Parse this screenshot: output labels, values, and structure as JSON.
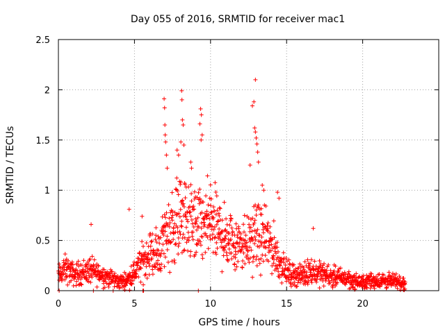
{
  "chart_data": {
    "type": "scatter",
    "title": "Day 055 of 2016, SRMTID for receiver mac1",
    "xlabel": "GPS time / hours",
    "ylabel": "SRMTID / TECUs",
    "xlim": [
      0,
      25
    ],
    "ylim": [
      0,
      2.5
    ],
    "xticks": [
      0,
      5,
      10,
      15,
      20
    ],
    "xtick_labels": [
      "0",
      "5",
      "10",
      "15",
      "20"
    ],
    "yticks": [
      0,
      0.5,
      1,
      1.5,
      2,
      2.5
    ],
    "ytick_labels": [
      "0",
      "0.5",
      "1",
      "1.5",
      "2",
      "2.5"
    ],
    "grid": true,
    "marker": "+",
    "color": "#ff0000",
    "series": [
      {
        "name": "SRMTID",
        "profile": {
          "x": [
            0.0,
            0.5,
            1.0,
            1.5,
            2.0,
            2.5,
            3.0,
            3.5,
            4.0,
            4.5,
            5.0,
            5.5,
            6.0,
            6.5,
            7.0,
            7.5,
            8.0,
            8.5,
            9.0,
            9.5,
            10.0,
            10.5,
            11.0,
            11.5,
            12.0,
            12.5,
            13.0,
            13.5,
            14.0,
            14.5,
            15.0,
            15.5,
            16.0,
            16.5,
            17.0,
            17.5,
            18.0,
            18.5,
            19.0,
            19.5,
            20.0,
            20.5,
            21.0,
            21.5,
            22.0,
            22.5,
            22.8
          ],
          "y": [
            0.15,
            0.22,
            0.16,
            0.18,
            0.2,
            0.18,
            0.15,
            0.12,
            0.09,
            0.1,
            0.18,
            0.28,
            0.38,
            0.35,
            0.55,
            0.65,
            0.75,
            0.7,
            0.65,
            0.62,
            0.68,
            0.6,
            0.52,
            0.5,
            0.5,
            0.48,
            0.55,
            0.5,
            0.45,
            0.3,
            0.18,
            0.16,
            0.15,
            0.2,
            0.18,
            0.16,
            0.14,
            0.13,
            0.12,
            0.09,
            0.08,
            0.1,
            0.1,
            0.1,
            0.09,
            0.08,
            0.07
          ]
        },
        "outliers": [
          [
            6.95,
            1.91
          ],
          [
            6.98,
            1.82
          ],
          [
            7.0,
            1.65
          ],
          [
            7.02,
            1.55
          ],
          [
            7.05,
            1.48
          ],
          [
            7.1,
            1.35
          ],
          [
            7.15,
            1.22
          ],
          [
            8.1,
            1.99
          ],
          [
            8.12,
            1.9
          ],
          [
            8.15,
            1.7
          ],
          [
            8.2,
            1.65
          ],
          [
            8.05,
            1.48
          ],
          [
            8.25,
            1.45
          ],
          [
            7.8,
            1.4
          ],
          [
            7.9,
            1.35
          ],
          [
            9.35,
            1.81
          ],
          [
            9.4,
            1.75
          ],
          [
            9.3,
            1.66
          ],
          [
            9.45,
            1.55
          ],
          [
            9.38,
            1.5
          ],
          [
            8.7,
            1.28
          ],
          [
            8.75,
            1.22
          ],
          [
            12.95,
            2.1
          ],
          [
            12.75,
            1.84
          ],
          [
            12.85,
            1.88
          ],
          [
            12.9,
            1.62
          ],
          [
            12.95,
            1.58
          ],
          [
            13.0,
            1.52
          ],
          [
            13.05,
            1.46
          ],
          [
            13.1,
            1.38
          ],
          [
            12.6,
            1.25
          ],
          [
            13.15,
            1.28
          ],
          [
            13.4,
            1.05
          ],
          [
            13.5,
            1.0
          ],
          [
            14.4,
            0.98
          ],
          [
            14.5,
            0.92
          ],
          [
            4.65,
            0.81
          ],
          [
            2.15,
            0.66
          ],
          [
            5.5,
            0.74
          ],
          [
            16.75,
            0.62
          ],
          [
            9.95,
            0.92
          ],
          [
            10.9,
            0.88
          ],
          [
            0.05,
            0.0
          ],
          [
            2.3,
            0.0
          ],
          [
            3.6,
            0.0
          ],
          [
            5.55,
            0.0
          ],
          [
            5.6,
            0.0
          ],
          [
            9.2,
            0.0
          ]
        ]
      }
    ]
  }
}
